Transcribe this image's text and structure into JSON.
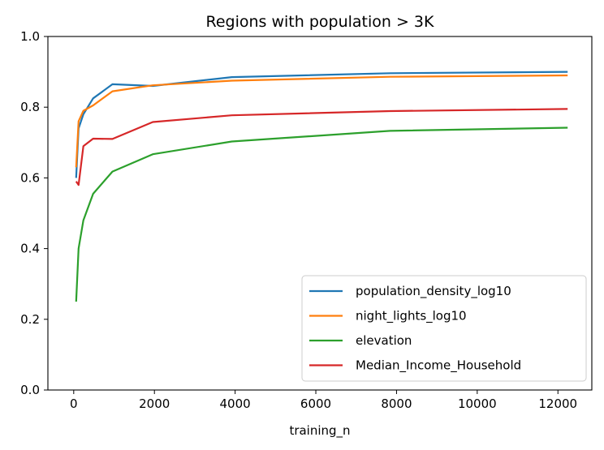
{
  "chart_data": {
    "type": "line",
    "title": "Regions with population > 3K",
    "xlabel": "training_n",
    "ylabel": "",
    "xlim": [
      -640,
      12840
    ],
    "ylim": [
      0,
      1.0
    ],
    "xticks": [
      0,
      2000,
      4000,
      6000,
      8000,
      10000,
      12000
    ],
    "xtick_labels": [
      "0",
      "2000",
      "4000",
      "6000",
      "8000",
      "10000",
      "12000"
    ],
    "yticks": [
      0,
      0.2,
      0.4,
      0.6,
      0.8,
      1.0
    ],
    "ytick_labels": [
      "0.0",
      "0.2",
      "0.4",
      "0.6",
      "0.8",
      "1.0"
    ],
    "grid": false,
    "legend_position": "lower-right",
    "x": [
      60,
      120,
      240,
      480,
      960,
      1960,
      3920,
      7840,
      12240
    ],
    "series": [
      {
        "name": "population_density_log10",
        "color": "#1f77b4",
        "values": [
          0.6,
          0.74,
          0.78,
          0.825,
          0.865,
          0.86,
          0.885,
          0.896,
          0.9
        ]
      },
      {
        "name": "night_lights_log10",
        "color": "#ff7f0e",
        "values": [
          0.63,
          0.76,
          0.79,
          0.805,
          0.845,
          0.862,
          0.875,
          0.886,
          0.89
        ]
      },
      {
        "name": "elevation",
        "color": "#2ca02c",
        "values": [
          0.25,
          0.4,
          0.48,
          0.555,
          0.618,
          0.667,
          0.703,
          0.733,
          0.742
        ]
      },
      {
        "name": "Median_Income_Household",
        "color": "#d62728",
        "values": [
          0.59,
          0.58,
          0.69,
          0.711,
          0.71,
          0.758,
          0.777,
          0.789,
          0.795
        ]
      }
    ]
  }
}
